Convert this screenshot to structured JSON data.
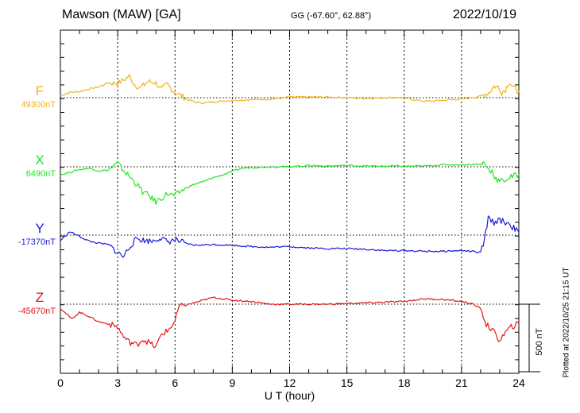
{
  "header": {
    "station": "Mawson (MAW)  [GA]",
    "coordinates": "GG (-67.60°,  62.88°)",
    "date": "2022/10/19"
  },
  "footer": {
    "plotted_at": "Plotted at 2022/10/25 21:15 UT"
  },
  "colors": {
    "F": "#f2b21c",
    "X": "#1ee81e",
    "Y": "#1a1ad6",
    "Z": "#e01818",
    "axis": "#000000"
  },
  "chart_data": {
    "type": "line",
    "title": "",
    "xlabel": "U T (hour)",
    "xlim": [
      0,
      24
    ],
    "x_ticks": [
      "0",
      "3",
      "6",
      "9",
      "12",
      "15",
      "18",
      "21",
      "24"
    ],
    "scale_bar_label": "500 nT",
    "scale_bar_nT": 500,
    "grid": "dotted vertical lines every 3 hours, dotted baseline per component",
    "series": [
      {
        "name": "F",
        "baseline_label": "49300nT",
        "baseline_nT": 49300,
        "x": [
          0,
          0.5,
          1,
          1.5,
          2,
          2.5,
          3,
          3.3,
          3.6,
          3.9,
          4.2,
          4.6,
          5,
          5.3,
          5.6,
          5.9,
          6.2,
          6.6,
          7,
          7.5,
          8,
          8.5,
          9,
          10,
          11,
          11.5,
          12,
          13,
          14,
          15,
          16,
          17,
          18,
          18.5,
          19,
          19.5,
          20,
          21,
          21.5,
          22,
          22.3,
          22.5,
          22.7,
          22.9,
          23.1,
          23.3,
          23.5,
          23.7,
          23.9,
          24
        ],
        "y": [
          15,
          40,
          45,
          65,
          80,
          110,
          105,
          130,
          160,
          95,
          75,
          120,
          110,
          60,
          100,
          50,
          25,
          -10,
          -30,
          -40,
          -30,
          -25,
          -20,
          -15,
          -10,
          -5,
          5,
          5,
          5,
          0,
          -5,
          0,
          0,
          -15,
          -25,
          -25,
          -20,
          -10,
          0,
          10,
          30,
          45,
          85,
          80,
          40,
          60,
          120,
          75,
          55,
          50
        ]
      },
      {
        "name": "X",
        "baseline_label": "6490nT",
        "baseline_nT": 6490,
        "x": [
          0,
          0.5,
          1,
          1.5,
          2,
          2.5,
          3,
          3.3,
          3.6,
          4,
          4.3,
          4.6,
          5,
          5.3,
          5.6,
          6,
          6.3,
          6.6,
          7,
          7.5,
          8,
          8.5,
          9,
          9.5,
          10,
          11,
          12,
          12.5,
          13,
          14,
          15,
          16,
          17,
          18,
          19,
          20,
          21,
          22,
          22.2,
          22.4,
          22.6,
          22.8,
          23,
          23.3,
          23.6,
          24
        ],
        "y": [
          -60,
          -40,
          -20,
          -10,
          -30,
          -25,
          25,
          -25,
          -70,
          -130,
          -185,
          -210,
          -260,
          -230,
          -200,
          -215,
          -180,
          -155,
          -130,
          -110,
          -80,
          -60,
          -35,
          -10,
          -5,
          0,
          0,
          5,
          10,
          5,
          10,
          5,
          5,
          5,
          5,
          15,
          15,
          20,
          30,
          -20,
          -30,
          -90,
          -110,
          -95,
          -75,
          -55
        ]
      },
      {
        "name": "Y",
        "baseline_label": "-17370nT",
        "baseline_nT": -17370,
        "x": [
          0,
          0.5,
          1,
          1.5,
          2,
          2.5,
          3,
          3.3,
          3.6,
          4,
          4.4,
          4.8,
          5.2,
          5.6,
          6,
          6.5,
          7,
          8,
          9,
          10,
          11,
          12,
          13,
          14,
          15,
          16,
          17,
          18,
          19,
          20,
          21,
          21.5,
          22,
          22.2,
          22.4,
          22.7,
          23,
          23.3,
          23.6,
          24
        ],
        "y": [
          -40,
          25,
          -10,
          -45,
          -60,
          -70,
          -130,
          -160,
          -90,
          -25,
          -40,
          -45,
          -20,
          -50,
          -35,
          -60,
          -75,
          -70,
          -75,
          -85,
          -90,
          -85,
          -95,
          -100,
          -100,
          -105,
          -115,
          -115,
          -120,
          -120,
          -115,
          -120,
          -130,
          -40,
          125,
          95,
          110,
          95,
          70,
          20
        ]
      },
      {
        "name": "Z",
        "baseline_label": "-45670nT",
        "baseline_nT": -45670,
        "x": [
          0,
          0.3,
          0.6,
          1,
          1.5,
          2,
          2.5,
          3,
          3.3,
          3.6,
          4,
          4.3,
          4.6,
          5,
          5.3,
          5.6,
          6,
          6.2,
          6.5,
          7,
          7.5,
          8,
          9,
          10,
          11,
          12,
          13,
          14,
          15,
          16,
          17,
          18,
          19,
          20,
          21,
          21.5,
          22,
          22.3,
          22.6,
          23,
          23.3,
          23.6,
          24
        ],
        "y": [
          -30,
          -70,
          -110,
          -60,
          -90,
          -130,
          -145,
          -170,
          -240,
          -280,
          -300,
          -260,
          -280,
          -320,
          -220,
          -200,
          -130,
          -20,
          -10,
          10,
          30,
          50,
          30,
          20,
          0,
          0,
          0,
          0,
          5,
          10,
          15,
          20,
          40,
          35,
          20,
          5,
          -30,
          -150,
          -190,
          -270,
          -210,
          -170,
          -140
        ]
      }
    ]
  }
}
